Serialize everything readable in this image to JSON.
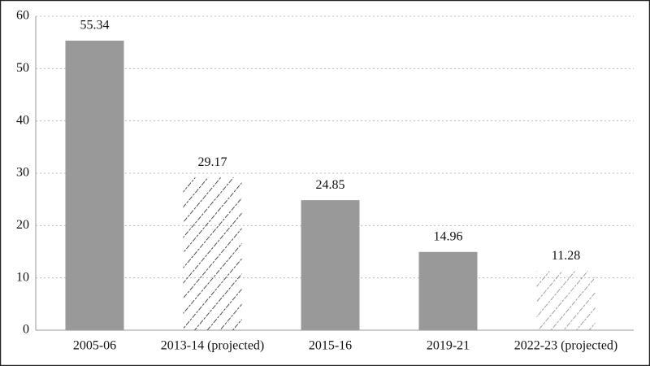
{
  "chart_data": {
    "type": "bar",
    "categories": [
      "2005-06",
      "2013-14 (projected)",
      "2015-16",
      "2019-21",
      "2022-23 (projected)"
    ],
    "values": [
      55.34,
      29.17,
      24.85,
      14.96,
      11.28
    ],
    "bar_styles": [
      "solid",
      "hatched",
      "solid",
      "solid",
      "hatched"
    ],
    "colors": [
      "#999999",
      "#222222",
      "#999999",
      "#999999",
      "#8a8a8a"
    ],
    "ylim": [
      0,
      60
    ],
    "yticks": [
      0,
      10,
      20,
      30,
      40,
      50,
      60
    ],
    "grid": true
  }
}
